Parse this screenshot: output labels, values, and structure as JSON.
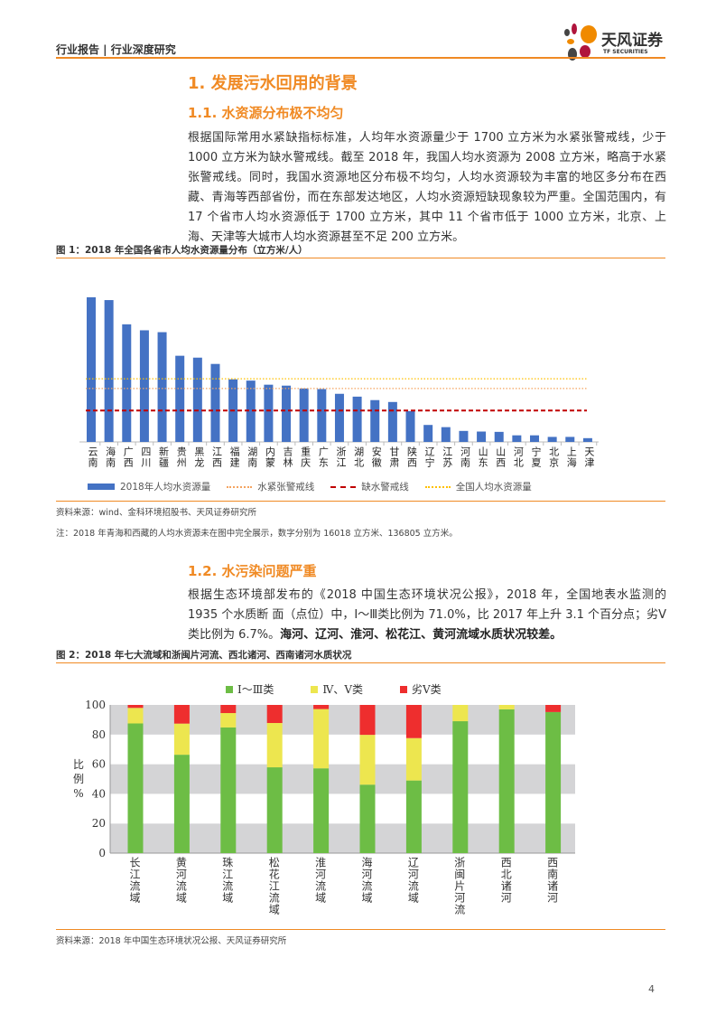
{
  "header": {
    "title": "行业报告 | 行业深度研究",
    "logo_cn": "天风证券",
    "logo_en": "TF SECURITIES"
  },
  "section1": {
    "title": "1. 发展污水回用的背景"
  },
  "section1_1": {
    "title": "1.1. 水资源分布极不均匀",
    "paragraph": "根据国际常用水紧缺指标标准，人均年水资源量少于 1700 立方米为水紧张警戒线，少于 1000 立方米为缺水警戒线。截至 2018 年，我国人均水资源为 2008 立方米，略高于水紧张警戒线。同时，我国水资源地区分布极不均匀，人均水资源较为丰富的地区多分布在西藏、青海等西部省份，而在东部发达地区，人均水资源短缺现象较为严重。全国范围内，有 17 个省市人均水资源低于 1700 立方米，其中 11 个省市低于 1000 立方米，北京、上海、天津等大城市人均水资源甚至不足 200 立方米。"
  },
  "figure1": {
    "prefix": "图 1：",
    "title": "2018 年全国各省市人均水资源量分布（立方米/人）",
    "source": "资料来源：wind、金科环境招股书、天风证券研究所",
    "note": "注：2018 年青海和西藏的人均水资源未在图中完全展示，数字分别为 16018 立方米、136805 立方米。"
  },
  "section1_2": {
    "title": "1.2. 水污染问题严重",
    "paragraph_normal": "根据生态环境部发布的《2018 中国生态环境状况公报》，2018 年，全国地表水监测的 1935 个水质断 面（点位）中，Ⅰ～Ⅲ类比例为 71.0%，比 2017 年上升 3.1 个百分点；劣Ⅴ类比例为 6.7%。",
    "paragraph_bold": "海河、辽河、淮河、松花江、黄河流域水质状况较差。"
  },
  "figure2": {
    "prefix": "图 2：",
    "title": "2018 年七大流域和浙闽片河流、西北诸河、西南诸河水质状况",
    "source": "资料来源：2018 年中国生态环境状况公报、天风证券研究所"
  },
  "page_number": "4",
  "chart_data": [
    {
      "type": "bar",
      "title": "2018 年全国各省市人均水资源量分布（立方米/人）",
      "categories": [
        "云南",
        "海南",
        "广西",
        "四川",
        "新疆",
        "贵州",
        "黑龙",
        "江西",
        "福建",
        "湖南",
        "内蒙",
        "吉林",
        "重庆",
        "广东",
        "浙江",
        "湖北",
        "安徽",
        "甘肃",
        "陕西",
        "辽宁",
        "江苏",
        "河南",
        "山东",
        "山西",
        "河北",
        "宁夏",
        "北京",
        "上海",
        "天津"
      ],
      "values": [
        4600,
        4510,
        3740,
        3550,
        3490,
        2740,
        2680,
        2480,
        1990,
        1950,
        1820,
        1790,
        1700,
        1680,
        1530,
        1440,
        1330,
        1270,
        980,
        540,
        470,
        350,
        330,
        320,
        210,
        210,
        160,
        160,
        120
      ],
      "ylim": [
        0,
        5000
      ],
      "reference_lines": [
        {
          "name": "水紧张警戒线",
          "value": 1700,
          "color": "#f4a460",
          "style": "dotted"
        },
        {
          "name": "缺水警戒线",
          "value": 1000,
          "color": "#c00000",
          "style": "dashed"
        },
        {
          "name": "全国人均水资源量",
          "value": 2008,
          "color": "#ffc000",
          "style": "dotted"
        }
      ],
      "series_name": "2018年人均水资源量",
      "bar_color": "#4472c4",
      "legend_position": "bottom"
    },
    {
      "type": "stacked-bar",
      "categories": [
        "长江流域",
        "黄河流域",
        "珠江流域",
        "松花江流域",
        "淮河流域",
        "海河流域",
        "辽河流域",
        "浙闽片河流",
        "西北诸河",
        "西南诸河"
      ],
      "series": [
        {
          "name": "Ⅰ～Ⅲ类",
          "color": "#6dbd45",
          "values": [
            87.5,
            66.4,
            84.8,
            57.9,
            57.2,
            46.2,
            49.0,
            89.0,
            97.0,
            95.2
          ]
        },
        {
          "name": "Ⅳ、Ⅴ类",
          "color": "#ede64f",
          "values": [
            10.5,
            21.0,
            9.7,
            29.9,
            40.0,
            33.6,
            28.6,
            11.0,
            3.0,
            0.0
          ]
        },
        {
          "name": "劣Ⅴ类",
          "color": "#ee2e2e",
          "values": [
            2.0,
            12.6,
            5.5,
            12.2,
            2.8,
            20.2,
            22.4,
            0.0,
            0.0,
            4.8
          ]
        }
      ],
      "ylabel": "比例%",
      "ylabel_chars": [
        "比",
        "例",
        "%"
      ],
      "yticks": [
        "0",
        "20",
        "40",
        "60",
        "80",
        "100"
      ],
      "ylim": [
        0,
        100
      ],
      "legend_position": "top"
    }
  ]
}
